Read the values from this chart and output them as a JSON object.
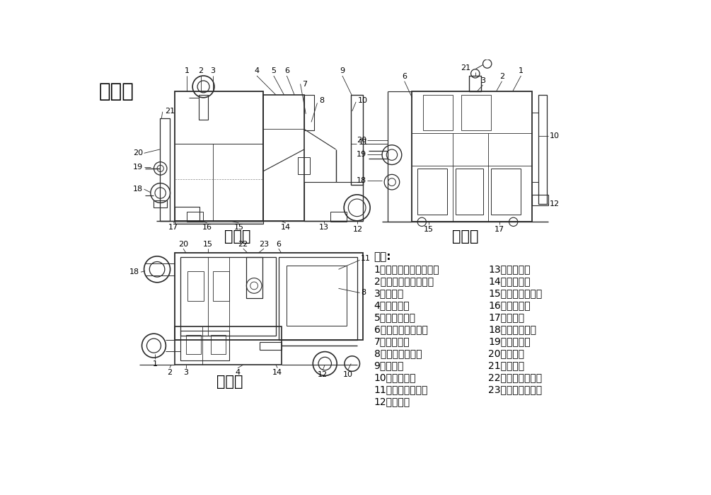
{
  "bg_color": "#ffffff",
  "san_shi_tu_label": "三视图",
  "zhu_shi_tu_label": "主视图",
  "zuo_shi_tu_label": "左视图",
  "fu_shi_tu_label": "俯视图",
  "shuo_ming_label": "说明:",
  "legend_col1": [
    "1、全自动固液分离装置",
    "2、固液分离装置箱体",
    "3、进水口",
    "4、曝气系统",
    "5、曝气输送管",
    "6、虹吸系统检修口",
    "7、虹吸系统",
    "8、恒温加热单元",
    "9、集油区",
    "10、排油开关",
    "11、油水分离装置",
    "12、集油桶"
  ],
  "legend_col2": [
    "13、槽钢底座",
    "14、泄水阀门",
    "15、污水提升装置",
    "16、渣桶推车",
    "17、集渣桶",
    "18、出水止回阀",
    "19、出水开关",
    "20、出水口",
    "21、排渣管",
    "22、水系线过线控",
    "23、液位控制系统"
  ],
  "drawing_color": "#2a2a2a",
  "light_color": "#888888",
  "font_size_main_title": 20,
  "font_size_view_title": 15,
  "font_size_legend_title": 11,
  "font_size_legend": 10,
  "font_size_number": 8
}
